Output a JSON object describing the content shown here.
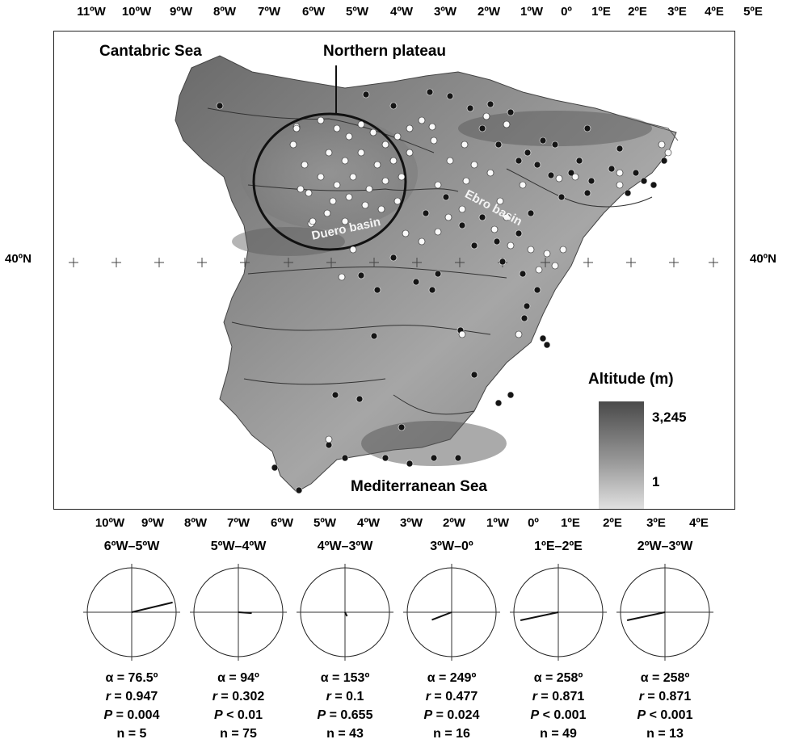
{
  "top_axis_labels": [
    "11ºW",
    "10ºW",
    "9ºW",
    "8ºW",
    "7ºW",
    "6ºW",
    "5ºW",
    "4ºW",
    "3ºW",
    "2ºW",
    "1ºW",
    "0º",
    "1ºE",
    "2ºE",
    "3ºE",
    "4ºE",
    "5ºE"
  ],
  "bottom_axis_labels": [
    "10ºW",
    "9ºW",
    "8ºW",
    "7ºW",
    "6ºW",
    "5ºW",
    "4ºW",
    "3ºW",
    "2ºW",
    "1ºW",
    "0º",
    "1ºE",
    "2ºE",
    "3ºE",
    "4ºE"
  ],
  "lat_label_left": "40ºN",
  "lat_label_right": "40ºN",
  "map": {
    "label_cantabric": "Cantabric Sea",
    "label_northern_plateau": "Northern plateau",
    "label_duero": "Duero basin",
    "label_ebro": "Ebro basin",
    "label_mediterranean": "Mediterranean Sea",
    "colors": {
      "land_dark": "#5a5a5a",
      "land_light": "#d4d4d4",
      "site_present": "#1a1a1a",
      "site_absent": "#ffffff"
    }
  },
  "legend": {
    "title": "Altitude (m)",
    "max": "3,245",
    "min": "1"
  },
  "roses": [
    {
      "title": "6ºW–5ºW",
      "alpha": "α = 76.5º",
      "r_label": "r",
      "r_value": " = 0.947",
      "p_label": "P",
      "p_value": " = 0.004",
      "n": "n = 5",
      "alpha_deg": 76.5,
      "r": 0.947
    },
    {
      "title": "5ºW–4ºW",
      "alpha": "α = 94º",
      "r_label": "r",
      "r_value": " = 0.302",
      "p_label": "P",
      "p_value": " < 0.01",
      "n": "n = 75",
      "alpha_deg": 94,
      "r": 0.302
    },
    {
      "title": "4ºW–3ºW",
      "alpha": "α = 153º",
      "r_label": "r",
      "r_value": " = 0.1",
      "p_label": "P",
      "p_value": " = 0.655",
      "n": "n = 43",
      "alpha_deg": 153,
      "r": 0.1
    },
    {
      "title": "3ºW–0º",
      "alpha": "α = 249º",
      "r_label": "r",
      "r_value": " = 0.477",
      "p_label": "P",
      "p_value": " = 0.024",
      "n": "n = 16",
      "alpha_deg": 249,
      "r": 0.477
    },
    {
      "title": "1ºE–2ºE",
      "alpha": "α = 258º",
      "r_label": "r",
      "r_value": " = 0.871",
      "p_label": "P",
      "p_value": " < 0.001",
      "n": "n = 49",
      "alpha_deg": 258,
      "r": 0.871
    },
    {
      "title": "2ºW–3ºW",
      "alpha": "α = 258º",
      "r_label": "r",
      "r_value": " = 0.871",
      "p_label": "P",
      "p_value": " < 0.001",
      "n": "n = 13",
      "alpha_deg": 258,
      "r": 0.871
    }
  ]
}
